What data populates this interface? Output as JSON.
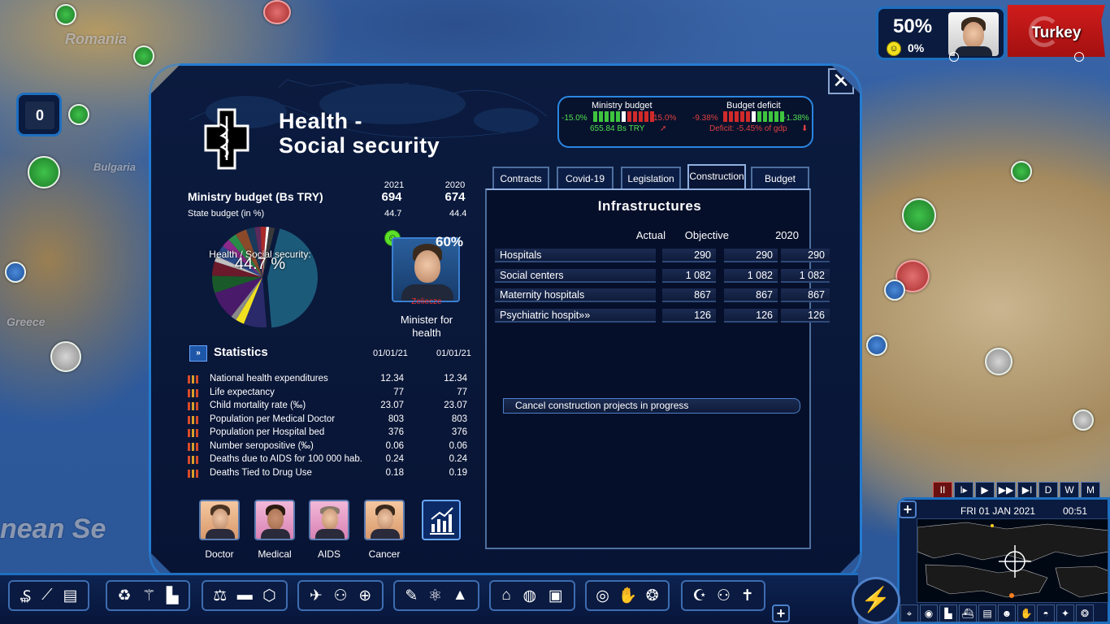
{
  "map": {
    "labels": [
      "Romania",
      "Bulgaria",
      "Greece",
      "nean Se"
    ]
  },
  "hud": {
    "left_badge_value": "0",
    "approval_pct": "50%",
    "approval_small": "0%",
    "country": "Turkey",
    "flag_color": "#d01c1c"
  },
  "dialog": {
    "close_label": "✕",
    "title_line1": "Health -",
    "title_line2": "Social security",
    "top_gauges": {
      "ministry_budget": {
        "title": "Ministry budget",
        "min": "-15.0%",
        "max": "15.0%",
        "value": "655.84 Bs TRY"
      },
      "budget_deficit": {
        "title": "Budget deficit",
        "min": "-9.38%",
        "max": "-1.38%",
        "value": "Deficit: -5.45% of gdp"
      }
    },
    "budget": {
      "header": "Ministry budget (Bs TRY)",
      "year_a": "2021",
      "year_b": "2020",
      "value_a": "694",
      "value_b": "674",
      "state_label": "State budget (in %)",
      "state_a": "44.7",
      "state_b": "44.4"
    },
    "pie": {
      "label": "Health / Social security:",
      "value": "44.7 %",
      "share": 0.447,
      "highlight_color": "#1c5a7a"
    },
    "minister": {
      "approval": "60%",
      "name": "Zeliecze",
      "role_line1": "Minister for",
      "role_line2": "health"
    },
    "statistics": {
      "header": "Statistics",
      "icon_label": "»",
      "date_a": "01/01/21",
      "date_b": "01/01/21",
      "rows": [
        {
          "label": "National health expenditures",
          "a": "12.34",
          "b": "12.34"
        },
        {
          "label": "Life expectancy",
          "a": "77",
          "b": "77"
        },
        {
          "label": "Child mortality rate (‰)",
          "a": "23.07",
          "b": "23.07"
        },
        {
          "label": "Population per Medical Doctor",
          "a": "803",
          "b": "803"
        },
        {
          "label": "Population per Hospital bed",
          "a": "376",
          "b": "376"
        },
        {
          "label": "Number seropositive (‰)",
          "a": "0.06",
          "b": "0.06"
        },
        {
          "label": "Deaths due to AIDS for 100 000 hab.",
          "a": "0.24",
          "b": "0.24"
        },
        {
          "label": "Deaths Tied to Drug Use",
          "a": "0.18",
          "b": "0.19"
        }
      ]
    },
    "advisors": [
      "Doctor",
      "Medical",
      "AIDS",
      "Cancer"
    ],
    "tabs": [
      "Contracts",
      "Covid-19",
      "Legislation",
      "Construction",
      "Budget"
    ],
    "infrastructure": {
      "title": "Infrastructures",
      "columns": [
        "Actual",
        "Objective",
        "2020"
      ],
      "rows": [
        {
          "label": "Hospitals",
          "actual": "290",
          "objective": "290",
          "prev": "290"
        },
        {
          "label": "Social centers",
          "actual": "1 082",
          "objective": "1 082",
          "prev": "1 082"
        },
        {
          "label": "Maternity hospitals",
          "actual": "867",
          "objective": "867",
          "prev": "867"
        },
        {
          "label": "Psychiatric hospit»»",
          "actual": "126",
          "objective": "126",
          "prev": "126"
        }
      ],
      "cancel_label": "Cancel construction projects in progress"
    }
  },
  "time": {
    "controls": [
      "II",
      "I▸",
      "▶",
      "▶▶",
      "▶I",
      "D",
      "W",
      "M"
    ],
    "date": "FRI 01 JAN 2021",
    "clock": "00:51"
  }
}
